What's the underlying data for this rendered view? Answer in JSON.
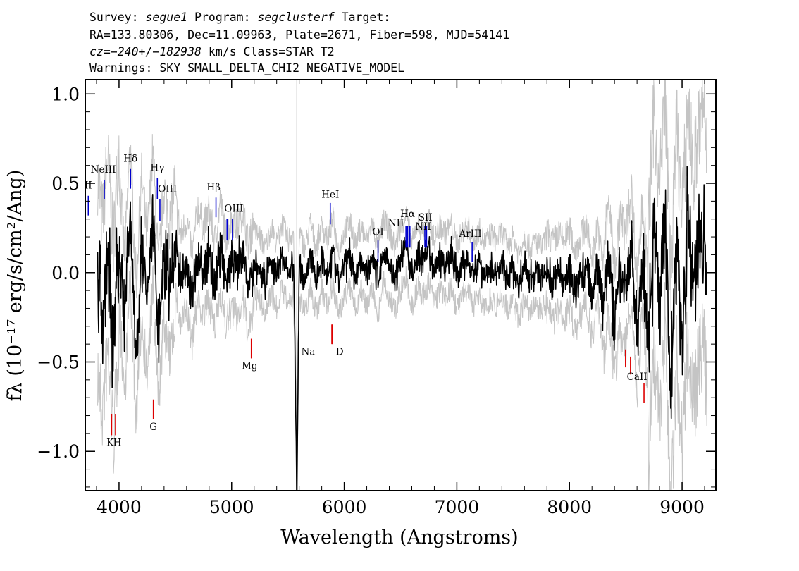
{
  "header": {
    "line1": {
      "survey_label": "Survey: ",
      "survey": "segue1",
      "program_label": " Program: ",
      "program": "segclusterf",
      "target_label": " Target:"
    },
    "line2": "RA=133.80306, Dec=11.09963, Plate=2671, Fiber=598, MJD=54141",
    "line3": {
      "cz_label": "cz=",
      "cz_value": "−240+/−182938",
      "rest": " km/s Class=STAR T2"
    },
    "line4": "Warnings: SKY SMALL_DELTA_CHI2 NEGATIVE_MODEL"
  },
  "chart_data": {
    "type": "line",
    "xlabel": "Wavelength (Angstroms)",
    "ylabel": "fλ (10⁻¹⁷ erg/s/cm²/Ang)",
    "xlim": [
      3700,
      9300
    ],
    "ylim": [
      -1.22,
      1.08
    ],
    "x_ticks": [
      {
        "value": 4000,
        "label": "4000"
      },
      {
        "value": 5000,
        "label": "5000"
      },
      {
        "value": 6000,
        "label": "6000"
      },
      {
        "value": 7000,
        "label": "7000"
      },
      {
        "value": 8000,
        "label": "8000"
      },
      {
        "value": 9000,
        "label": "9000"
      }
    ],
    "y_ticks": [
      {
        "value": 1.0,
        "label": "1.0"
      },
      {
        "value": 0.5,
        "label": "0.5"
      },
      {
        "value": 0.0,
        "label": "0.0"
      },
      {
        "value": -0.5,
        "label": "−0.5"
      },
      {
        "value": -1.0,
        "label": "−1.0"
      }
    ],
    "grid": false,
    "colors": {
      "flux": "#000000",
      "error_band": "#c4c4c4",
      "emission": "#0000cc",
      "absorption": "#dd0000"
    },
    "series": [
      {
        "name": "flux",
        "x": [
          3800,
          3850,
          3900,
          3950,
          4000,
          4050,
          4100,
          4150,
          4200,
          4250,
          4300,
          4350,
          4400,
          4450,
          4500,
          4550,
          4600,
          4650,
          4700,
          4750,
          4800,
          4850,
          4900,
          4950,
          5000,
          5050,
          5100,
          5150,
          5200,
          5250,
          5300,
          5350,
          5400,
          5450,
          5500,
          5550,
          5580,
          5600,
          5650,
          5700,
          5750,
          5800,
          5850,
          5900,
          5950,
          6000,
          6050,
          6100,
          6150,
          6200,
          6250,
          6300,
          6350,
          6400,
          6450,
          6500,
          6550,
          6600,
          6650,
          6700,
          6750,
          6800,
          6850,
          6900,
          6950,
          7000,
          7050,
          7100,
          7150,
          7200,
          7250,
          7300,
          7350,
          7400,
          7450,
          7500,
          7550,
          7600,
          7650,
          7700,
          7750,
          7800,
          7850,
          7900,
          7950,
          8000,
          8050,
          8100,
          8150,
          8200,
          8250,
          8300,
          8350,
          8400,
          8450,
          8500,
          8550,
          8600,
          8650,
          8700,
          8750,
          8800,
          8850,
          8900,
          8950,
          9000,
          9050,
          9100,
          9150,
          9200,
          9220
        ],
        "values": [
          0.05,
          -0.25,
          0.1,
          -0.4,
          0.2,
          -0.3,
          0.35,
          -0.45,
          0.15,
          -0.2,
          0.3,
          -0.35,
          0.1,
          -0.1,
          0.15,
          -0.05,
          0.05,
          -0.15,
          0.12,
          0.0,
          0.1,
          -0.08,
          0.15,
          -0.05,
          0.05,
          0.0,
          0.1,
          -0.1,
          0.05,
          0.02,
          -0.05,
          0.08,
          -0.02,
          0.1,
          0.0,
          0.05,
          -1.2,
          0.05,
          -0.05,
          0.1,
          -0.04,
          0.08,
          0.0,
          0.12,
          -0.06,
          0.05,
          0.1,
          -0.02,
          0.08,
          0.0,
          0.1,
          -0.05,
          0.12,
          0.05,
          -0.04,
          0.08,
          0.15,
          -0.02,
          0.1,
          0.05,
          0.12,
          0.0,
          0.08,
          0.04,
          0.1,
          -0.02,
          0.05,
          0.08,
          0.0,
          0.06,
          -0.02,
          0.04,
          0.0,
          0.05,
          -0.03,
          0.02,
          -0.08,
          0.03,
          -0.05,
          0.0,
          -0.04,
          0.02,
          -0.06,
          0.0,
          -0.05,
          0.02,
          -0.1,
          -0.02,
          0.05,
          -0.15,
          0.05,
          -0.2,
          0.1,
          -0.3,
          0.0,
          -0.1,
          0.15,
          -0.35,
          0.1,
          -0.4,
          0.25,
          -0.2,
          0.4,
          -0.7,
          0.2,
          -0.35,
          0.3,
          -0.1,
          0.15,
          0.3,
          -0.1
        ]
      }
    ],
    "emission_lines": [
      {
        "label": "II",
        "x": 3727,
        "y_bottom": 0.32,
        "y_top": 0.43,
        "lx": 3727,
        "ly": 0.47
      },
      {
        "label": "NeIII",
        "x": 3869,
        "y_bottom": 0.41,
        "y_top": 0.52,
        "lx": 3860,
        "ly": 0.56
      },
      {
        "label": "Hδ",
        "x": 4102,
        "y_bottom": 0.47,
        "y_top": 0.58,
        "lx": 4102,
        "ly": 0.62
      },
      {
        "label": "Hγ",
        "x": 4340,
        "y_bottom": 0.41,
        "y_top": 0.53,
        "lx": 4340,
        "ly": 0.57
      },
      {
        "label": "OIII",
        "x": 4363,
        "y_bottom": 0.29,
        "y_top": 0.41,
        "lx": 4430,
        "ly": 0.45
      },
      {
        "label": "Hβ",
        "x": 4861,
        "y_bottom": 0.31,
        "y_top": 0.42,
        "lx": 4840,
        "ly": 0.46
      },
      {
        "label": "OIII",
        "x": 4959,
        "y_bottom": 0.18,
        "y_top": 0.3,
        "lx": 5020,
        "ly": 0.34
      },
      {
        "label": "OIII",
        "x": 5007,
        "y_bottom": 0.18,
        "y_top": 0.3,
        "lx": 5020,
        "ly": 0.34,
        "hide_label": true
      },
      {
        "label": "HeI",
        "x": 5876,
        "y_bottom": 0.27,
        "y_top": 0.39,
        "lx": 5876,
        "ly": 0.42
      },
      {
        "label": "OI",
        "x": 6300,
        "y_bottom": 0.06,
        "y_top": 0.18,
        "lx": 6300,
        "ly": 0.21
      },
      {
        "label": "NII",
        "x": 6548,
        "y_bottom": 0.14,
        "y_top": 0.26,
        "lx": 6460,
        "ly": 0.26
      },
      {
        "label": "Hα",
        "x": 6563,
        "y_bottom": 0.14,
        "y_top": 0.26,
        "lx": 6563,
        "ly": 0.31
      },
      {
        "label": "NII",
        "x": 6583,
        "y_bottom": 0.14,
        "y_top": 0.26,
        "lx": 6460,
        "ly": 0.26,
        "hide_label": true
      },
      {
        "label": "SII",
        "x": 6716,
        "y_bottom": 0.14,
        "y_top": 0.26,
        "lx": 6720,
        "ly": 0.29
      },
      {
        "label": "NII",
        "x": 6731,
        "y_bottom": 0.14,
        "y_top": 0.26,
        "lx": 6700,
        "ly": 0.24
      },
      {
        "label": "ArIII",
        "x": 7136,
        "y_bottom": 0.06,
        "y_top": 0.17,
        "lx": 7120,
        "ly": 0.2
      }
    ],
    "absorption_lines": [
      {
        "label": "K",
        "x": 3934,
        "y_bottom": -0.91,
        "y_top": -0.79,
        "lx": 3920,
        "ly": -0.97
      },
      {
        "label": "H",
        "x": 3969,
        "y_bottom": -0.91,
        "y_top": -0.79,
        "lx": 3985,
        "ly": -0.97
      },
      {
        "label": "G",
        "x": 4305,
        "y_bottom": -0.82,
        "y_top": -0.71,
        "lx": 4305,
        "ly": -0.88
      },
      {
        "label": "Mg",
        "x": 5175,
        "y_bottom": -0.48,
        "y_top": -0.37,
        "lx": 5160,
        "ly": -0.54
      },
      {
        "label": "Na",
        "x": 5890,
        "y_bottom": -0.4,
        "y_top": -0.29,
        "lx": 5680,
        "ly": -0.46
      },
      {
        "label": "D",
        "x": 5896,
        "y_bottom": -0.4,
        "y_top": -0.29,
        "lx": 5960,
        "ly": -0.46
      },
      {
        "label": "CaII",
        "x": 8498,
        "y_bottom": -0.53,
        "y_top": -0.43,
        "lx": 8600,
        "ly": -0.6
      },
      {
        "label": "",
        "x": 8542,
        "y_bottom": -0.57,
        "y_top": -0.47
      },
      {
        "label": "",
        "x": 8662,
        "y_bottom": -0.73,
        "y_top": -0.62
      }
    ]
  }
}
